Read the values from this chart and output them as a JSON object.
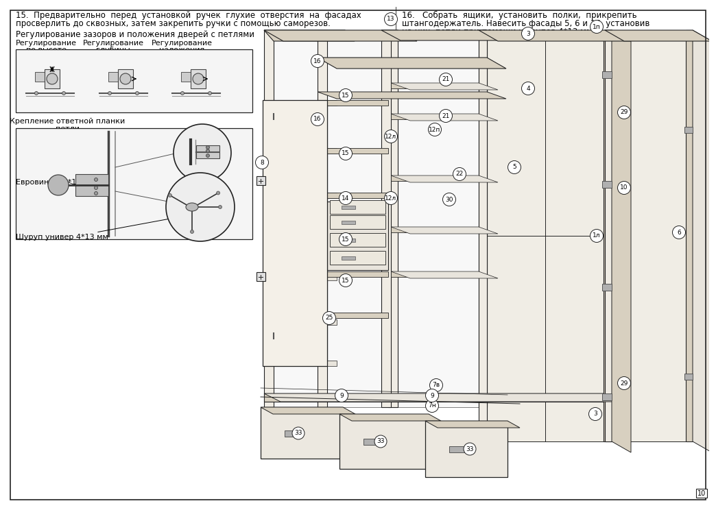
{
  "background_color": "#ffffff",
  "text_color": "#000000",
  "page_num": "10",
  "figsize": [
    10.24,
    7.24
  ],
  "dpi": 100,
  "title_15_l1": "15.  Предварительно  перед  установкой  ручек  глухие  отверстия  на  фасадах",
  "title_15_l2": "просверлить до сквозных, затем закрепить ручки с помощью саморезов.",
  "title_16_l1": "16.   Собрать  ящики,  установить  полки,  прикрепить",
  "title_16_l2": "штангодержатель. Навесить фасады 5, 6 и 16, установив",
  "title_16_l3": "на них  петли при помощи шурупов 4*13 мм.",
  "hinge_title": "Регулирование зазоров и положения дверей с петлями",
  "reg1_l1": "Регулирование",
  "reg1_l2": "по высоте",
  "reg2_l1": "Регулирование",
  "reg2_l2": "глубины",
  "reg3_l1": "Регулирование",
  "reg3_l2": "наложения",
  "bracket_l1": "Крепление ответной планки",
  "bracket_l2": "петли",
  "euroscrew": "Евровинт 6,3*10,5 мм",
  "screw": "Шуруп универ 4*13 мм"
}
